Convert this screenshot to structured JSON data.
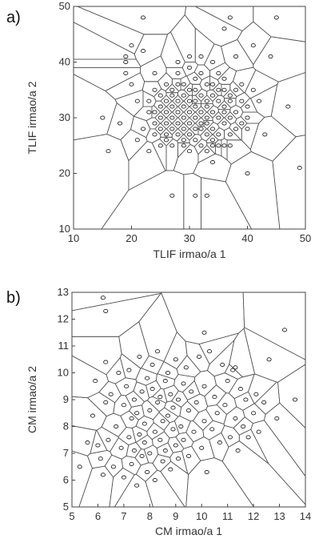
{
  "figure": {
    "panel_a_tag": "a)",
    "panel_b_tag": "b)"
  },
  "chart_data": [
    {
      "type": "scatter",
      "overlay": "voronoi",
      "xlabel": "TLIF irmao/a 1",
      "ylabel": "TLIF irmao/a 2",
      "xlim": [
        10,
        50
      ],
      "ylim": [
        10,
        50
      ],
      "xticks": [
        10,
        20,
        30,
        40,
        50
      ],
      "yticks": [
        10,
        20,
        30,
        40,
        50
      ],
      "x": [
        15,
        16,
        18,
        19,
        19,
        20,
        21,
        21,
        22,
        22,
        23,
        23,
        23,
        24,
        24,
        24,
        24,
        24,
        25,
        25,
        25,
        25,
        25,
        26,
        26,
        26,
        26,
        26,
        26,
        27,
        27,
        27,
        27,
        27,
        27,
        28,
        28,
        28,
        28,
        28,
        28,
        28,
        29,
        29,
        29,
        29,
        29,
        29,
        29,
        30,
        30,
        30,
        30,
        30,
        30,
        30,
        30,
        31,
        31,
        31,
        31,
        31,
        31,
        31,
        32,
        32,
        32,
        32,
        32,
        32,
        32,
        33,
        33,
        33,
        33,
        33,
        33,
        33,
        34,
        34,
        34,
        34,
        34,
        34,
        35,
        35,
        35,
        35,
        35,
        35,
        36,
        36,
        36,
        36,
        36,
        37,
        37,
        37,
        37,
        37,
        38,
        38,
        38,
        38,
        39,
        39,
        39,
        40,
        40,
        40,
        41,
        41,
        42,
        43,
        44,
        45,
        47,
        49,
        22,
        27,
        31,
        33,
        34,
        37,
        40,
        20,
        19,
        36,
        34,
        36
      ],
      "y": [
        30,
        24,
        29,
        41,
        38,
        36,
        26,
        33,
        42,
        28,
        31,
        24,
        33,
        29,
        27,
        35,
        31,
        38,
        25,
        34,
        32,
        28,
        30,
        36,
        33,
        27,
        31,
        26,
        29,
        35,
        32,
        30,
        28,
        25,
        34,
        40,
        36,
        27,
        33,
        31,
        29,
        38,
        34,
        30,
        25,
        32,
        28,
        26,
        36,
        39,
        31,
        27,
        33,
        29,
        35,
        24,
        41,
        30,
        33,
        26,
        37,
        28,
        32,
        35,
        31,
        28,
        34,
        29,
        38,
        25,
        41,
        30,
        36,
        33,
        27,
        32,
        24,
        29,
        36,
        31,
        26,
        34,
        40,
        28,
        33,
        30,
        35,
        27,
        38,
        25,
        32,
        29,
        37,
        31,
        35,
        30,
        34,
        27,
        33,
        25,
        31,
        35,
        28,
        41,
        33,
        29,
        36,
        32,
        30,
        28,
        43,
        35,
        33,
        27,
        41,
        48,
        32,
        21,
        48,
        16,
        16,
        16,
        22,
        48,
        20,
        43,
        40,
        46,
        25,
        25
      ]
    },
    {
      "type": "scatter",
      "overlay": "voronoi",
      "xlabel": "CM irmao/a 1",
      "ylabel": "CM irmao/a 2",
      "xlim": [
        5,
        14
      ],
      "ylim": [
        5,
        13
      ],
      "xticks": [
        5,
        6,
        7,
        8,
        9,
        10,
        11,
        12,
        13,
        14
      ],
      "yticks": [
        5,
        6,
        7,
        8,
        9,
        10,
        11,
        12,
        13
      ],
      "x": [
        5.3,
        5.6,
        5.8,
        5.9,
        6.0,
        6.1,
        6.2,
        6.3,
        6.3,
        6.4,
        6.5,
        6.6,
        6.7,
        6.8,
        6.9,
        7.0,
        7.0,
        7.1,
        7.2,
        7.2,
        7.3,
        7.3,
        7.4,
        7.4,
        7.5,
        7.5,
        7.6,
        7.6,
        7.7,
        7.7,
        7.8,
        7.8,
        7.9,
        7.9,
        8.0,
        8.0,
        8.1,
        8.1,
        8.2,
        8.2,
        8.3,
        8.3,
        8.4,
        8.4,
        8.5,
        8.5,
        8.6,
        8.6,
        8.7,
        8.7,
        8.8,
        8.8,
        8.9,
        8.9,
        9.0,
        9.0,
        9.1,
        9.1,
        9.2,
        9.3,
        9.3,
        9.4,
        9.5,
        9.5,
        9.6,
        9.7,
        9.8,
        9.9,
        10.0,
        10.1,
        10.1,
        10.2,
        10.3,
        10.4,
        10.5,
        10.6,
        10.7,
        10.8,
        10.9,
        11.0,
        11.1,
        11.2,
        11.3,
        11.4,
        11.5,
        11.6,
        11.7,
        11.8,
        12.0,
        12.1,
        12.2,
        12.4,
        12.6,
        12.9,
        13.2,
        13.6,
        6.2,
        6.3,
        10.1,
        11.3
      ],
      "y": [
        6.5,
        7.4,
        8.4,
        9.7,
        7.3,
        6.8,
        6.2,
        10.4,
        8.9,
        7.5,
        9.2,
        6.5,
        8.0,
        10.0,
        7.2,
        8.8,
        6.1,
        9.5,
        7.6,
        10.1,
        8.3,
        6.6,
        7.1,
        9.0,
        8.5,
        5.8,
        7.7,
        10.6,
        9.3,
        6.9,
        8.1,
        7.4,
        9.8,
        6.3,
        8.6,
        7.0,
        9.4,
        10.3,
        7.8,
        6.0,
        8.9,
        10.8,
        7.5,
        9.1,
        8.2,
        6.7,
        9.7,
        7.1,
        8.4,
        10.0,
        6.4,
        9.2,
        7.9,
        8.7,
        10.5,
        7.3,
        9.0,
        6.8,
        8.0,
        9.6,
        7.5,
        10.2,
        8.6,
        6.9,
        9.3,
        7.8,
        8.9,
        10.6,
        7.2,
        9.5,
        8.2,
        6.3,
        10.8,
        7.9,
        9.1,
        8.5,
        7.4,
        10.3,
        8.8,
        9.7,
        7.6,
        10.1,
        8.3,
        7.1,
        9.4,
        8.0,
        9.0,
        7.6,
        8.5,
        9.2,
        7.8,
        8.9,
        10.5,
        8.3,
        11.6,
        9.0,
        12.8,
        12.3,
        11.5,
        10.2
      ]
    }
  ]
}
